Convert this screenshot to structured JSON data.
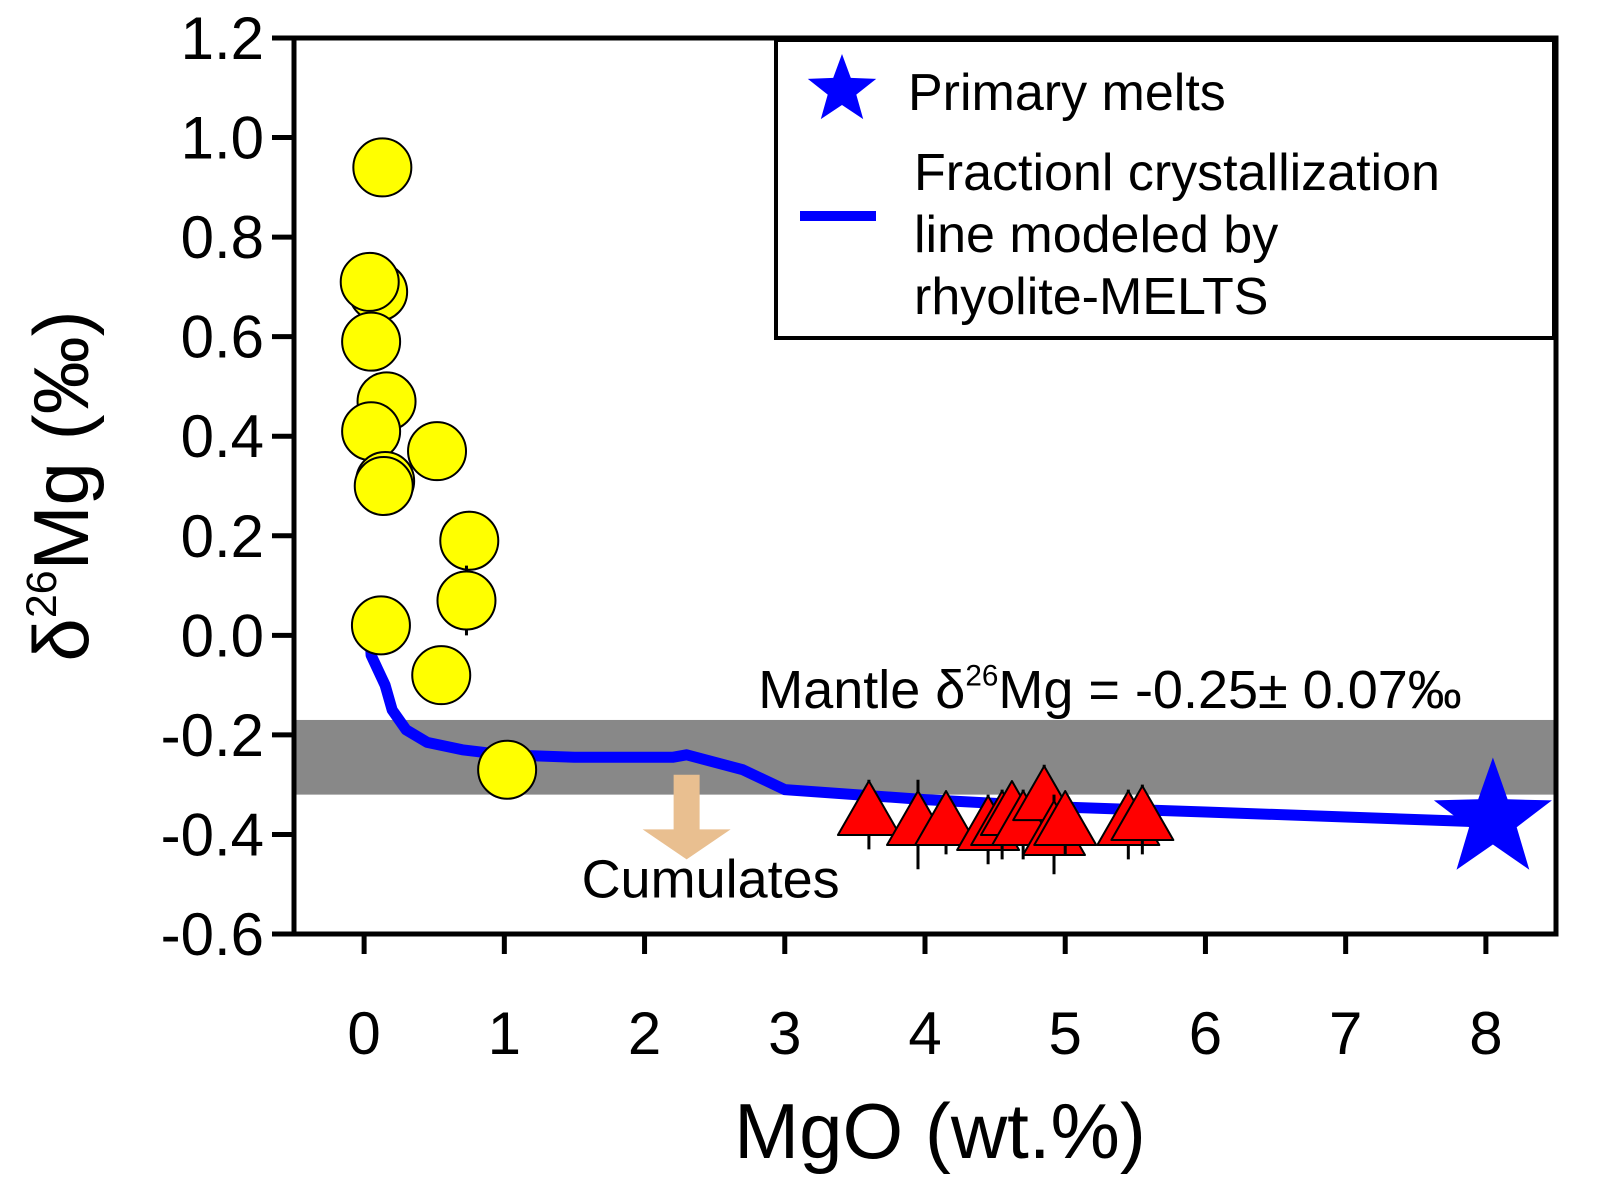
{
  "chart_data": {
    "type": "scatter",
    "xlabel": "MgO (wt.%)",
    "ylabel": {
      "prefix": "δ",
      "sup": "26",
      "suffix": "Mg (‰)"
    },
    "xlim": [
      -0.5,
      8.5
    ],
    "ylim": [
      -0.6,
      1.2
    ],
    "x_ticks": [
      0,
      1,
      2,
      3,
      4,
      5,
      6,
      7,
      8
    ],
    "y_ticks": [
      -0.6,
      -0.4,
      -0.2,
      0.0,
      0.2,
      0.4,
      0.6,
      0.8,
      1.0,
      1.2
    ],
    "y_tick_labels": [
      "-0.6",
      "-0.4",
      "-0.2",
      "0.0",
      "0.2",
      "0.4",
      "0.6",
      "0.8",
      "1.0",
      "1.2"
    ],
    "grid": false,
    "legend_position": "top-right",
    "legend": [
      {
        "symbol": "star",
        "color": "#0000ff",
        "label_lines": [
          "Primary melts"
        ]
      },
      {
        "symbol": "line",
        "color": "#0000ff",
        "label_lines": [
          "Fractionl crystallization",
          "line modeled by",
          "rhyolite-MELTS"
        ]
      }
    ],
    "mantle_band": {
      "y_range": [
        -0.32,
        -0.17
      ],
      "color": "#888888",
      "label": {
        "prefix": "Mantle δ",
        "sup": "26",
        "suffix": "Mg = -0.25± 0.07‰"
      }
    },
    "annotations": [
      {
        "text": "Cumulates",
        "arrow": "down",
        "arrow_color": "#e9bf90",
        "x": 2.3,
        "y_top": -0.28,
        "y_bottom": -0.45
      }
    ],
    "series": [
      {
        "marker": "circle",
        "color": "#ffff00",
        "points": [
          {
            "x": 0.13,
            "y": 0.94
          },
          {
            "x": 0.1,
            "y": 0.69
          },
          {
            "x": 0.04,
            "y": 0.71
          },
          {
            "x": 0.05,
            "y": 0.59
          },
          {
            "x": 0.16,
            "y": 0.47
          },
          {
            "x": 0.05,
            "y": 0.41
          },
          {
            "x": 0.52,
            "y": 0.37
          },
          {
            "x": 0.15,
            "y": 0.31
          },
          {
            "x": 0.14,
            "y": 0.3
          },
          {
            "x": 0.75,
            "y": 0.19,
            "err": 0.06
          },
          {
            "x": 0.73,
            "y": 0.07,
            "err": 0.07
          },
          {
            "x": 0.12,
            "y": 0.02
          },
          {
            "x": 0.55,
            "y": -0.08
          },
          {
            "x": 1.02,
            "y": -0.27
          }
        ]
      },
      {
        "marker": "triangle",
        "color": "#ff0000",
        "points": [
          {
            "x": 3.6,
            "y": -0.36,
            "err": 0.07
          },
          {
            "x": 3.95,
            "y": -0.38,
            "err": 0.09
          },
          {
            "x": 4.15,
            "y": -0.38,
            "err": 0.06
          },
          {
            "x": 4.45,
            "y": -0.39,
            "err": 0.07
          },
          {
            "x": 4.55,
            "y": -0.38,
            "err": 0.07
          },
          {
            "x": 4.62,
            "y": -0.36,
            "err": 0.06
          },
          {
            "x": 4.7,
            "y": -0.38,
            "err": 0.07
          },
          {
            "x": 4.85,
            "y": -0.33,
            "err": 0.07
          },
          {
            "x": 4.92,
            "y": -0.4,
            "err": 0.08
          },
          {
            "x": 5.0,
            "y": -0.38,
            "err": 0.06
          },
          {
            "x": 5.45,
            "y": -0.38,
            "err": 0.07
          },
          {
            "x": 5.55,
            "y": -0.37,
            "err": 0.07
          }
        ]
      },
      {
        "marker": "star",
        "color": "#0000ff",
        "points": [
          {
            "x": 8.05,
            "y": -0.37
          }
        ]
      },
      {
        "type": "line",
        "color": "#0000ff",
        "points": [
          {
            "x": 0.03,
            "y": 0.06
          },
          {
            "x": 0.05,
            "y": -0.04
          },
          {
            "x": 0.1,
            "y": -0.07
          },
          {
            "x": 0.15,
            "y": -0.1
          },
          {
            "x": 0.2,
            "y": -0.15
          },
          {
            "x": 0.3,
            "y": -0.19
          },
          {
            "x": 0.45,
            "y": -0.215
          },
          {
            "x": 0.7,
            "y": -0.23
          },
          {
            "x": 1.0,
            "y": -0.24
          },
          {
            "x": 1.5,
            "y": -0.245
          },
          {
            "x": 2.2,
            "y": -0.245
          },
          {
            "x": 2.3,
            "y": -0.24
          },
          {
            "x": 2.7,
            "y": -0.27
          },
          {
            "x": 3.0,
            "y": -0.31
          },
          {
            "x": 4.0,
            "y": -0.33
          },
          {
            "x": 5.0,
            "y": -0.345
          },
          {
            "x": 6.0,
            "y": -0.355
          },
          {
            "x": 7.0,
            "y": -0.365
          },
          {
            "x": 8.0,
            "y": -0.375
          }
        ]
      }
    ]
  }
}
